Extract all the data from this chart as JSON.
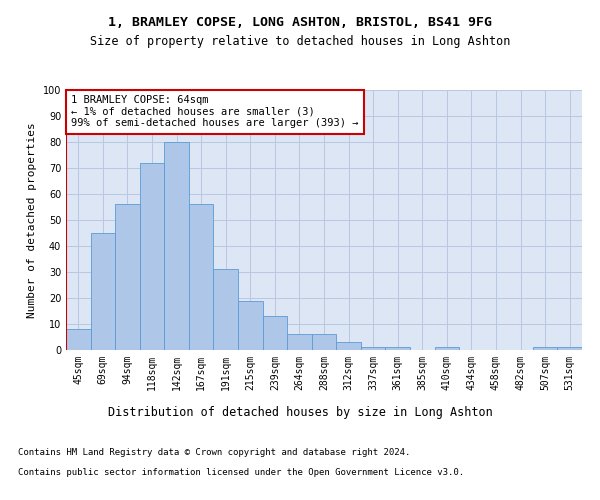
{
  "title": "1, BRAMLEY COPSE, LONG ASHTON, BRISTOL, BS41 9FG",
  "subtitle": "Size of property relative to detached houses in Long Ashton",
  "xlabel": "Distribution of detached houses by size in Long Ashton",
  "ylabel": "Number of detached properties",
  "categories": [
    "45sqm",
    "69sqm",
    "94sqm",
    "118sqm",
    "142sqm",
    "167sqm",
    "191sqm",
    "215sqm",
    "239sqm",
    "264sqm",
    "288sqm",
    "312sqm",
    "337sqm",
    "361sqm",
    "385sqm",
    "410sqm",
    "434sqm",
    "458sqm",
    "482sqm",
    "507sqm",
    "531sqm"
  ],
  "values": [
    8,
    45,
    56,
    72,
    80,
    56,
    31,
    19,
    13,
    6,
    6,
    3,
    1,
    1,
    0,
    1,
    0,
    0,
    0,
    1,
    1
  ],
  "bar_color": "#aec6e8",
  "bar_edge_color": "#5b9bd5",
  "highlight_line_color": "#cc0000",
  "background_color": "#ffffff",
  "plot_bg_color": "#dce6f5",
  "grid_color": "#b8c8e0",
  "annotation_text": "1 BRAMLEY COPSE: 64sqm\n← 1% of detached houses are smaller (3)\n99% of semi-detached houses are larger (393) →",
  "annotation_box_color": "#ffffff",
  "annotation_box_edge_color": "#cc0000",
  "footer_line1": "Contains HM Land Registry data © Crown copyright and database right 2024.",
  "footer_line2": "Contains public sector information licensed under the Open Government Licence v3.0.",
  "ylim": [
    0,
    100
  ],
  "yticks": [
    0,
    10,
    20,
    30,
    40,
    50,
    60,
    70,
    80,
    90,
    100
  ],
  "title_fontsize": 9.5,
  "subtitle_fontsize": 8.5,
  "ylabel_fontsize": 8,
  "xlabel_fontsize": 8.5,
  "tick_fontsize": 7,
  "annotation_fontsize": 7.5,
  "footer_fontsize": 6.5
}
